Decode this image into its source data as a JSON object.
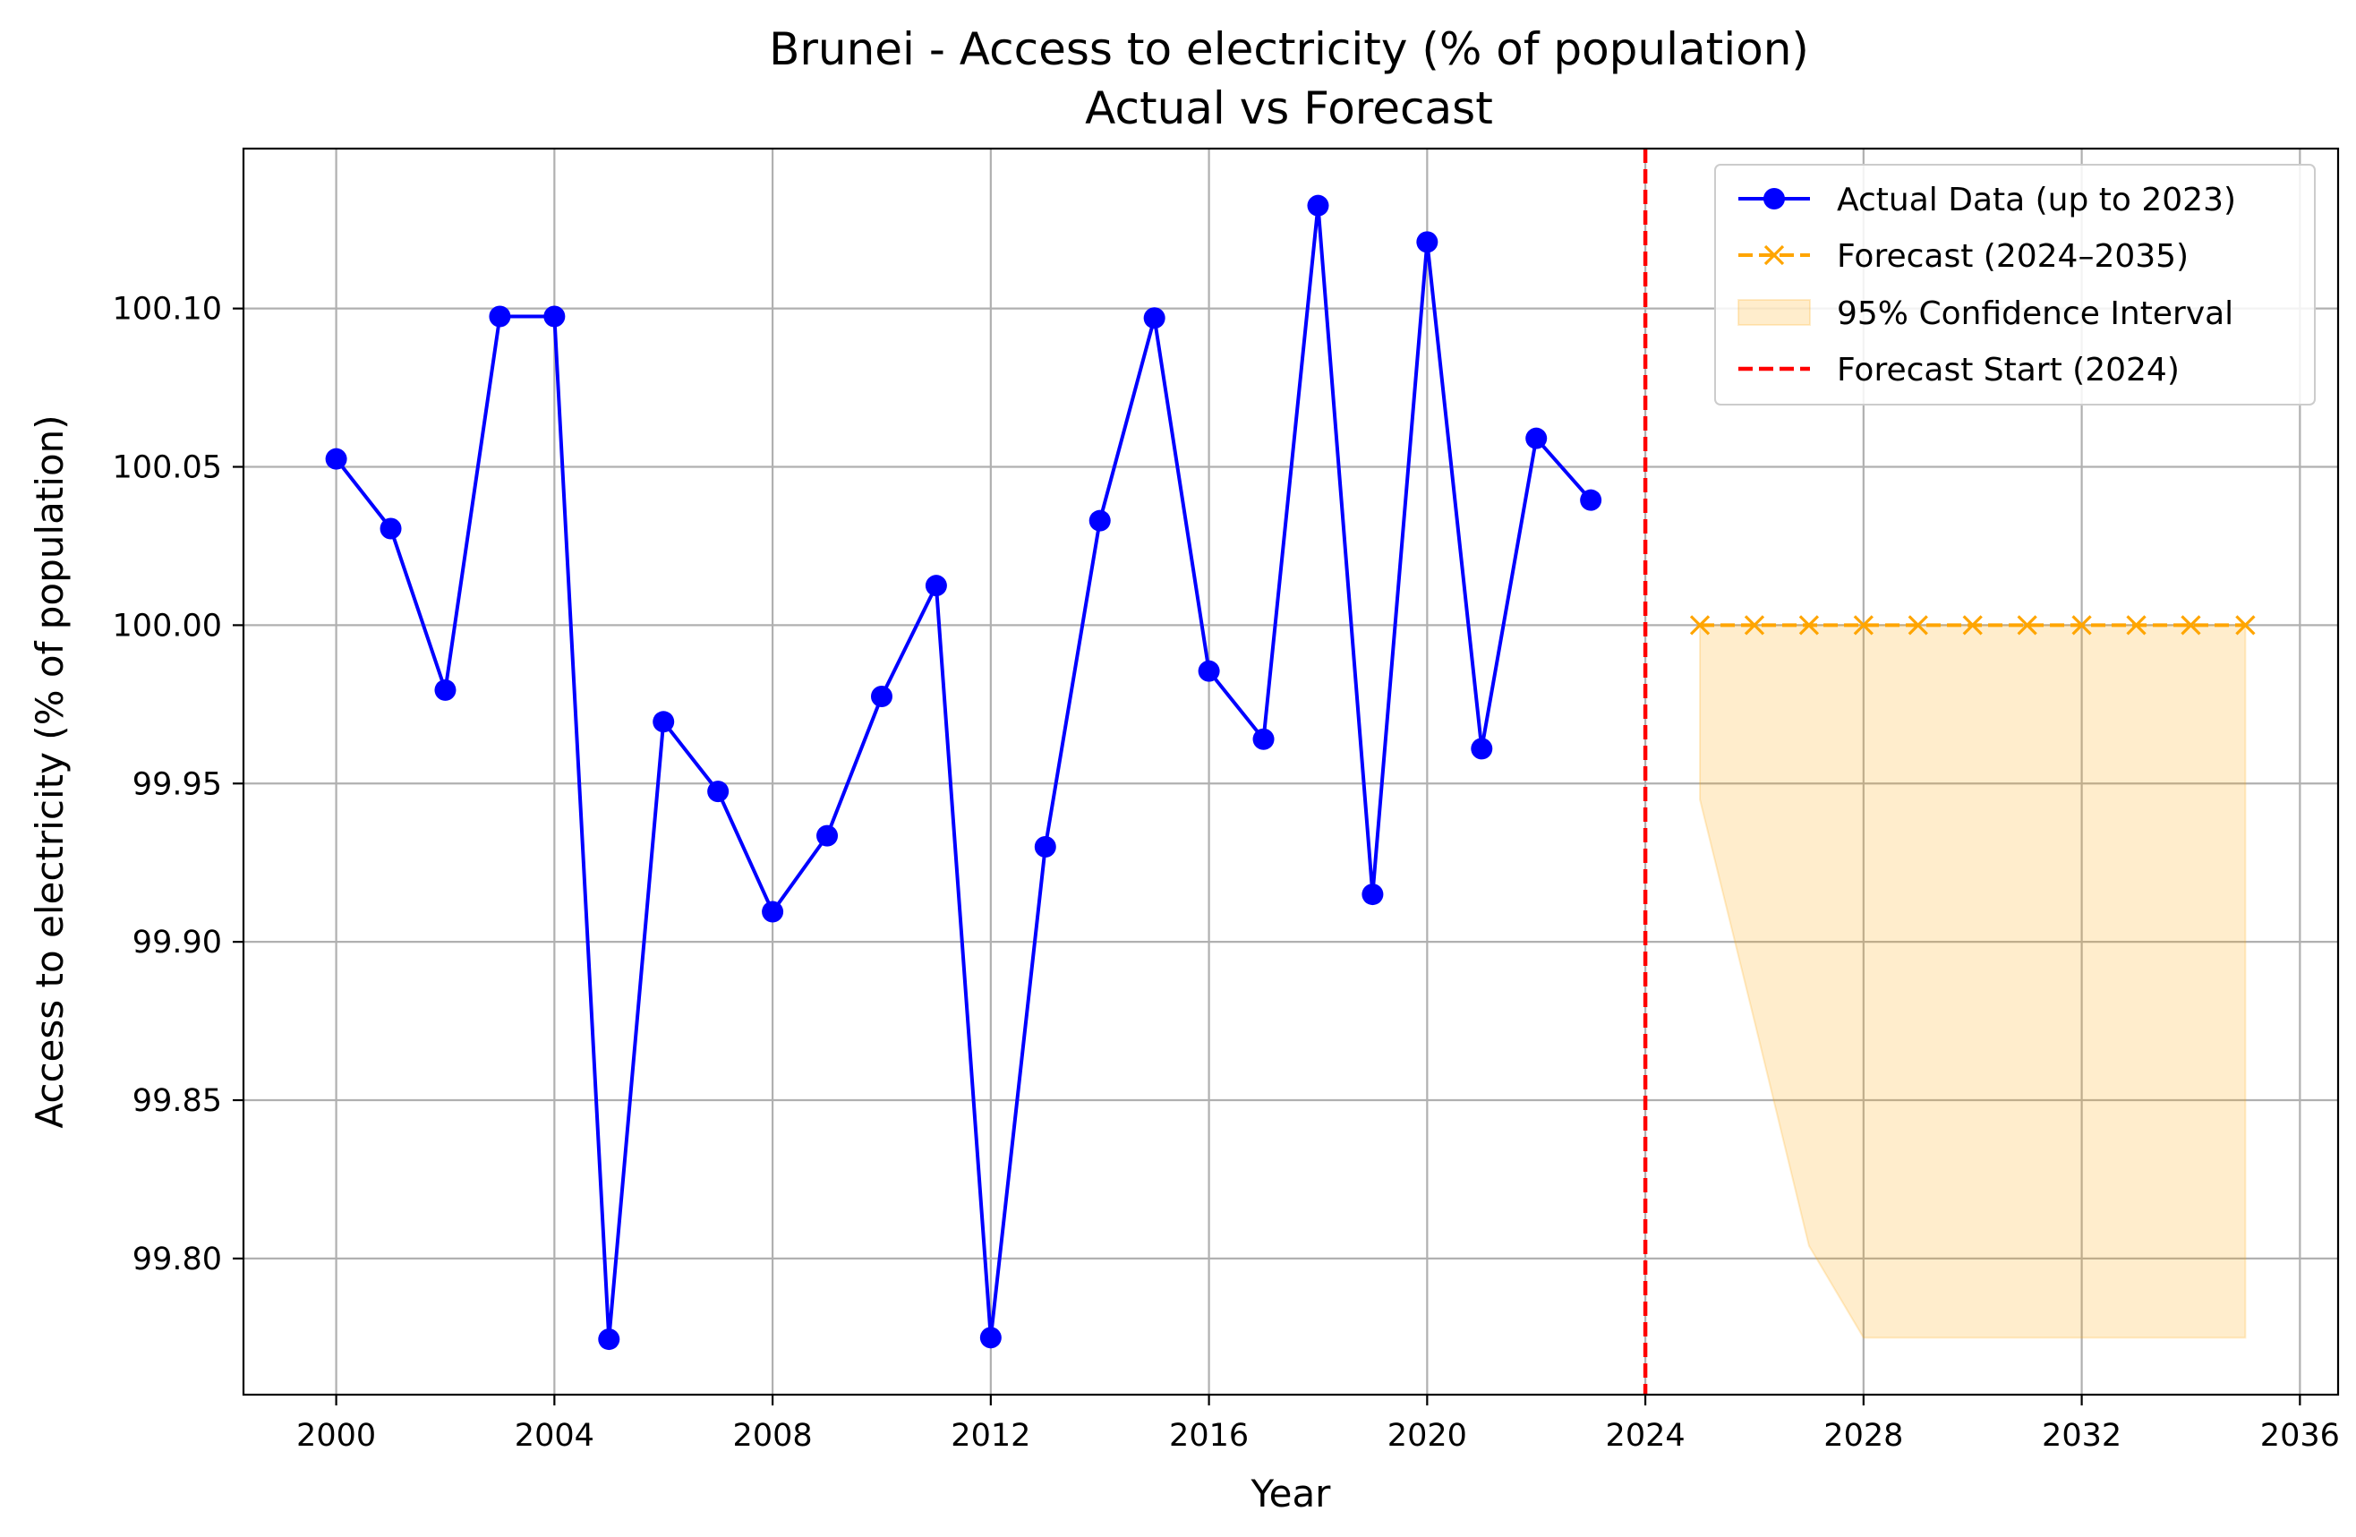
{
  "chart_data": {
    "type": "line",
    "title": "Brunei - Access to electricity (% of population)",
    "subtitle": "Actual vs Forecast",
    "xlabel": "Year",
    "ylabel": "Access to electricity (% of population)",
    "xlim": [
      1998.3,
      2036.7
    ],
    "ylim": [
      99.757,
      100.1505
    ],
    "xticks": [
      2000,
      2004,
      2008,
      2012,
      2016,
      2020,
      2024,
      2028,
      2032,
      2036
    ],
    "yticks": [
      99.8,
      99.85,
      99.9,
      99.95,
      100.0,
      100.05,
      100.1
    ],
    "ytick_labels": [
      "99.80",
      "99.85",
      "99.90",
      "99.95",
      "100.00",
      "100.05",
      "100.10"
    ],
    "grid": true,
    "legend_position": "top-right",
    "series": [
      {
        "name": "Actual Data (up to 2023)",
        "style": "solid-circle",
        "color": "#0000ff",
        "x": [
          2000,
          2001,
          2002,
          2003,
          2004,
          2005,
          2006,
          2007,
          2008,
          2009,
          2010,
          2011,
          2012,
          2013,
          2014,
          2015,
          2016,
          2017,
          2018,
          2019,
          2020,
          2021,
          2022,
          2023
        ],
        "values": [
          100.0525,
          100.0305,
          99.9795,
          100.0975,
          100.0975,
          99.7745,
          99.9695,
          99.9475,
          99.9095,
          99.9335,
          99.9775,
          100.0125,
          99.775,
          99.93,
          100.033,
          100.097,
          99.9855,
          99.964,
          100.1325,
          99.915,
          100.121,
          99.961,
          100.059,
          100.0395
        ]
      },
      {
        "name": "Forecast (2024–2035)",
        "style": "dashed-x",
        "color": "#ffa500",
        "x": [
          2025,
          2026,
          2027,
          2028,
          2029,
          2030,
          2031,
          2032,
          2033,
          2034,
          2035
        ],
        "values": [
          100.0,
          100.0,
          100.0,
          100.0,
          100.0,
          100.0,
          100.0,
          100.0,
          100.0,
          100.0,
          100.0
        ]
      }
    ],
    "confidence_interval": {
      "name": "95% Confidence Interval",
      "color": "#ffa500",
      "x": [
        2025,
        2026,
        2027,
        2028,
        2029,
        2030,
        2031,
        2032,
        2033,
        2034,
        2035
      ],
      "lower": [
        99.945,
        99.875,
        99.804,
        99.775,
        99.775,
        99.775,
        99.775,
        99.775,
        99.775,
        99.775,
        99.775
      ],
      "upper": [
        100.0,
        100.0,
        100.0,
        100.0,
        100.0,
        100.0,
        100.0,
        100.0,
        100.0,
        100.0,
        100.0
      ]
    },
    "vline": {
      "name": "Forecast Start (2024)",
      "x": 2024,
      "color": "#ff0000",
      "style": "dashed"
    }
  }
}
